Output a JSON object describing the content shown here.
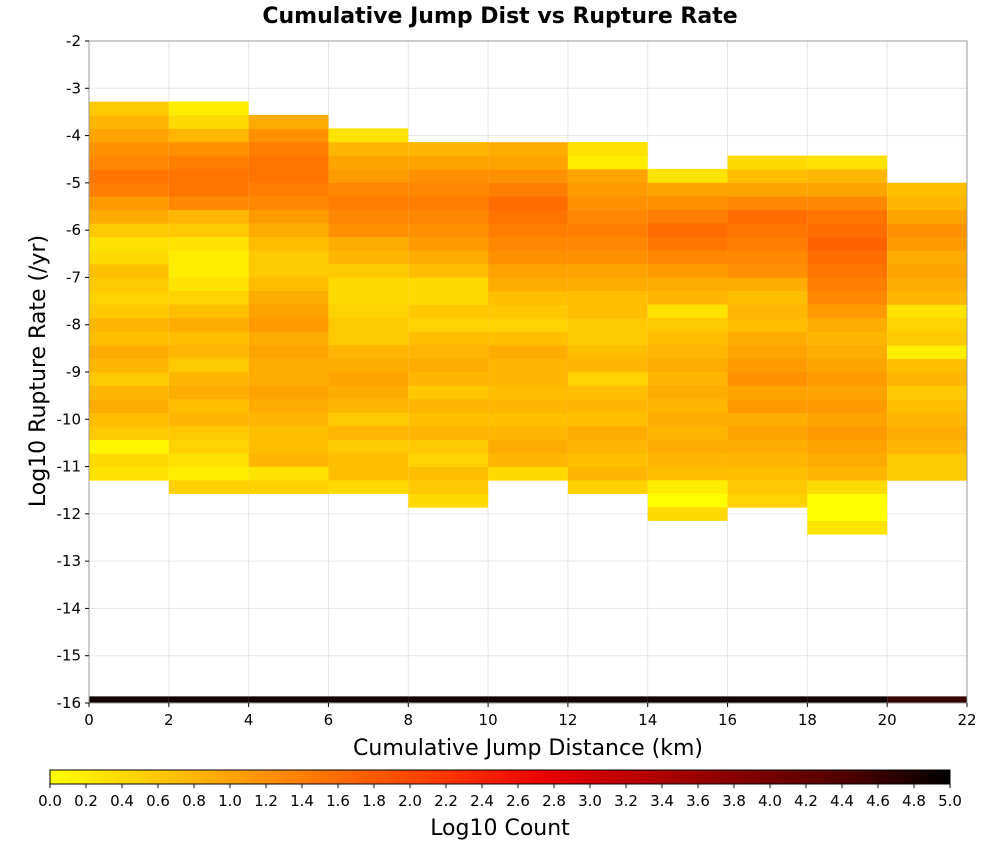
{
  "chart_data": {
    "type": "heatmap",
    "title": "Cumulative Jump Dist vs Rupture Rate",
    "xlabel": "Cumulative Jump Distance (km)",
    "ylabel": "Log10 Rupture Rate (/yr)",
    "xlim": [
      0,
      22
    ],
    "ylim": [
      -16,
      -2
    ],
    "x_ticks": [
      "0",
      "2",
      "4",
      "6",
      "8",
      "10",
      "12",
      "14",
      "16",
      "18",
      "20",
      "22"
    ],
    "y_ticks": [
      "-2",
      "-3",
      "-4",
      "-5",
      "-6",
      "-7",
      "-8",
      "-9",
      "-10",
      "-11",
      "-12",
      "-13",
      "-14",
      "-15",
      "-16"
    ],
    "x_bin_width": 2,
    "y_bin_height": 0.286,
    "grid": true,
    "colorbar": {
      "label": "Log10 Count",
      "range": [
        0,
        5
      ],
      "ticks": [
        "0.0",
        "0.2",
        "0.4",
        "0.6",
        "0.8",
        "1.0",
        "1.2",
        "1.4",
        "1.6",
        "1.8",
        "2.0",
        "2.2",
        "2.4",
        "2.6",
        "2.8",
        "3.0",
        "3.2",
        "3.4",
        "3.6",
        "3.8",
        "4.0",
        "4.2",
        "4.4",
        "4.6",
        "4.8",
        "5.0"
      ],
      "colors": [
        "#ffff00",
        "#ffcc00",
        "#ff9900",
        "#ff6600",
        "#ff3300",
        "#e60000",
        "#b30000",
        "#800000",
        "#4d0000",
        "#000000"
      ]
    },
    "columns": [
      {
        "x_start": 0,
        "y_start": -11.29,
        "values": [
          0.3,
          0.4,
          0.1,
          0.6,
          0.7,
          0.9,
          0.8,
          0.6,
          0.8,
          0.9,
          0.7,
          0.8,
          0.6,
          0.5,
          0.6,
          0.7,
          0.4,
          0.3,
          0.6,
          0.9,
          1.1,
          1.4,
          1.5,
          1.3,
          1.2,
          1.0,
          0.8,
          0.6
        ]
      },
      {
        "x_start": 2,
        "y_start": -11.57,
        "values": [
          0.5,
          0.2,
          0.3,
          0.5,
          0.6,
          0.8,
          0.7,
          0.9,
          0.8,
          0.6,
          0.8,
          0.7,
          0.9,
          0.7,
          0.5,
          0.3,
          0.2,
          0.2,
          0.3,
          0.6,
          0.8,
          1.3,
          1.5,
          1.5,
          1.4,
          1.2,
          0.8,
          0.4,
          0.2
        ]
      },
      {
        "x_start": 4,
        "y_start": -11.57,
        "values": [
          0.5,
          0.3,
          0.8,
          0.7,
          0.7,
          0.8,
          0.9,
          1.0,
          0.9,
          0.9,
          1.0,
          0.9,
          1.1,
          1.0,
          0.9,
          0.7,
          0.6,
          0.6,
          0.7,
          0.9,
          1.1,
          1.3,
          1.4,
          1.5,
          1.5,
          1.4,
          1.2,
          0.9
        ]
      },
      {
        "x_start": 6,
        "y_start": -11.57,
        "values": [
          0.4,
          0.7,
          0.7,
          0.6,
          0.8,
          0.6,
          0.8,
          0.9,
          1.0,
          0.9,
          0.8,
          0.6,
          0.6,
          0.5,
          0.4,
          0.4,
          0.6,
          0.8,
          0.9,
          1.2,
          1.3,
          1.4,
          1.3,
          1.1,
          1.0,
          0.8,
          0.3
        ]
      },
      {
        "x_start": 8,
        "y_start": -11.86,
        "values": [
          0.4,
          0.6,
          0.7,
          0.5,
          0.6,
          0.8,
          0.7,
          0.8,
          0.6,
          0.8,
          0.9,
          0.8,
          0.7,
          0.5,
          0.6,
          0.4,
          0.4,
          0.7,
          0.9,
          1.1,
          1.2,
          1.3,
          1.4,
          1.3,
          1.2,
          1.0,
          0.8
        ]
      },
      {
        "x_start": 10,
        "y_start": -11.29,
        "values": [
          0.4,
          0.8,
          0.9,
          0.8,
          0.7,
          0.8,
          0.7,
          0.8,
          0.8,
          0.9,
          0.7,
          0.5,
          0.6,
          0.7,
          0.9,
          1.0,
          1.2,
          1.3,
          1.4,
          1.5,
          1.6,
          1.4,
          1.2,
          1.0,
          0.9
        ]
      },
      {
        "x_start": 12,
        "y_start": -11.57,
        "values": [
          0.5,
          0.8,
          0.7,
          0.8,
          0.9,
          0.7,
          0.8,
          0.7,
          0.5,
          0.8,
          0.7,
          0.6,
          0.6,
          0.7,
          0.7,
          0.9,
          1.0,
          1.2,
          1.3,
          1.4,
          1.3,
          1.2,
          1.1,
          1.0,
          0.2,
          0.3
        ]
      },
      {
        "x_start": 14,
        "y_start": -12.14,
        "values": [
          0.4,
          0,
          0.2,
          0.7,
          0.8,
          0.9,
          0.8,
          0.9,
          0.8,
          0.9,
          0.8,
          0.9,
          0.8,
          0.7,
          0.6,
          0.3,
          0.8,
          0.9,
          1.1,
          1.3,
          1.5,
          1.6,
          1.4,
          1.2,
          1.0,
          0.3
        ]
      },
      {
        "x_start": 16,
        "y_start": -11.86,
        "values": [
          0.5,
          0.6,
          0.7,
          0.8,
          0.9,
          1.0,
          0.9,
          1.1,
          1.0,
          1.2,
          1.1,
          1.0,
          0.9,
          0.7,
          0.8,
          0.7,
          0.9,
          1.2,
          1.3,
          1.4,
          1.5,
          1.6,
          1.3,
          1.0,
          0.7,
          0.4
        ]
      },
      {
        "x_start": 18,
        "y_start": -12.43,
        "values": [
          0.3,
          0,
          0,
          0.4,
          0.8,
          0.9,
          1.0,
          1.1,
          1.0,
          1.1,
          1.0,
          1.1,
          1.0,
          0.9,
          0.8,
          0.9,
          1.1,
          1.3,
          1.4,
          1.5,
          1.6,
          1.7,
          1.6,
          1.5,
          1.3,
          1.0,
          0.8,
          0.3
        ]
      },
      {
        "x_start": 20,
        "y_start": -11.29,
        "values": [
          0.6,
          0.6,
          0.8,
          0.9,
          0.8,
          0.7,
          0.6,
          0.8,
          0.7,
          0.2,
          0.6,
          0.5,
          0.3,
          0.8,
          0.9,
          1.0,
          0.9,
          1.1,
          1.2,
          1.0,
          0.8,
          0.7
        ]
      }
    ],
    "bottom_row": {
      "y_start": -16,
      "y_end": -15.86,
      "values": [
        4.9,
        4.9,
        4.9,
        4.9,
        4.9,
        4.9,
        4.9,
        4.9,
        4.9,
        4.9,
        4.6
      ]
    }
  }
}
